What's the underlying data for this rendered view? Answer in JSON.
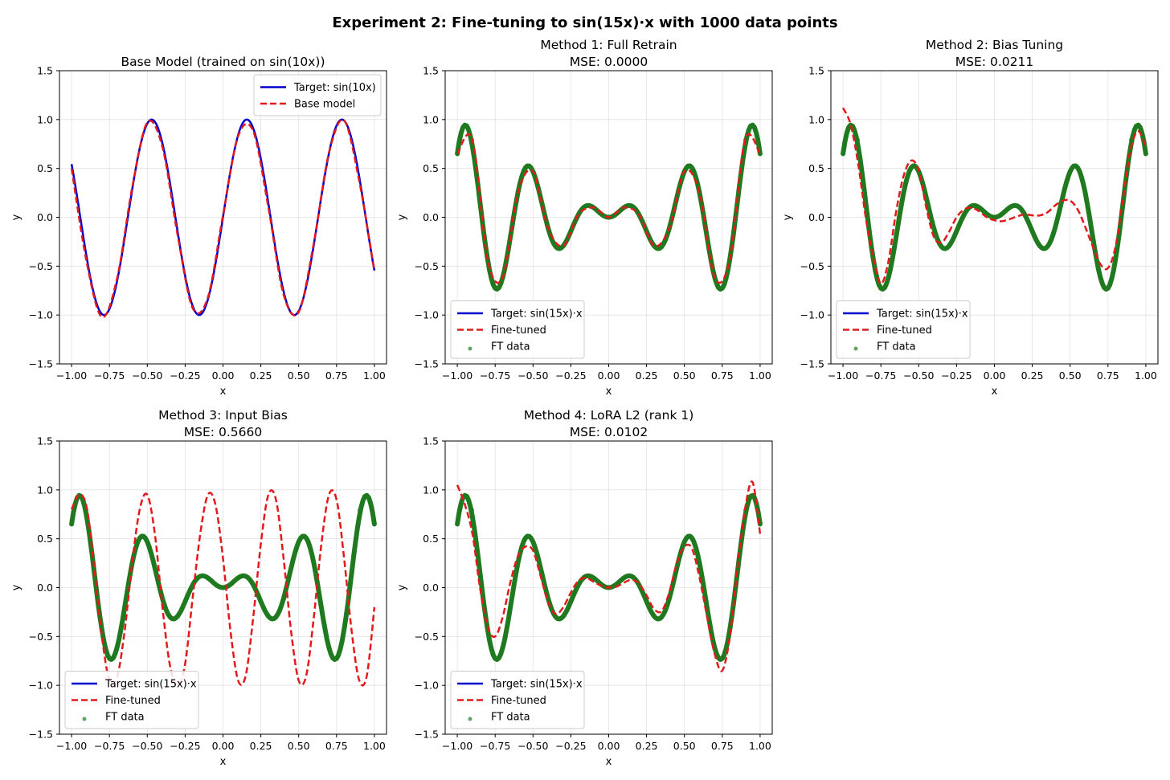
{
  "figure_title": "Experiment 2: Fine-tuning to sin(15x)·x with 1000 data points",
  "colors": {
    "target": "#0000cc",
    "model": "#e31a1c",
    "ft_data": "#1f7a1f"
  },
  "chart_data": [
    {
      "type": "line",
      "title_lines": [
        "Base Model (trained on sin(10x))"
      ],
      "xlabel": "x",
      "ylabel": "y",
      "xlim": [
        -1.08,
        1.08
      ],
      "ylim": [
        -1.5,
        1.5
      ],
      "xticks": [
        "−1.00",
        "−0.75",
        "−0.50",
        "−0.25",
        "0.00",
        "0.25",
        "0.50",
        "0.75",
        "1.00"
      ],
      "yticks": [
        "−1.5",
        "−1.0",
        "−0.5",
        "0.0",
        "0.5",
        "1.0",
        "1.5"
      ],
      "grid": true,
      "legend_position": "top-right",
      "legend": [
        "Target: sin(10x)",
        "Base model"
      ],
      "series": [
        {
          "name": "Target: sin(10x)",
          "style": "target",
          "x": [
            -1,
            -0.9,
            -0.8,
            -0.7,
            -0.6,
            -0.5,
            -0.4,
            -0.3,
            -0.2,
            -0.1,
            0,
            0.1,
            0.2,
            0.3,
            0.4,
            0.5,
            0.6,
            0.7,
            0.8,
            0.9,
            1
          ],
          "y": [
            0.544,
            -0.412,
            -0.989,
            -0.657,
            0.279,
            0.959,
            0.757,
            -0.141,
            -0.909,
            -0.841,
            0,
            0.841,
            0.909,
            0.141,
            -0.757,
            -0.959,
            -0.279,
            0.657,
            0.989,
            0.412,
            -0.544
          ]
        },
        {
          "name": "Base model",
          "style": "model",
          "x": [
            -1,
            -0.9,
            -0.8,
            -0.7,
            -0.6,
            -0.5,
            -0.4,
            -0.3,
            -0.2,
            -0.1,
            0,
            0.1,
            0.2,
            0.3,
            0.4,
            0.5,
            0.6,
            0.7,
            0.8,
            0.9,
            1
          ],
          "y": [
            0.5,
            -0.46,
            -1.02,
            -0.63,
            0.3,
            0.97,
            0.72,
            -0.18,
            -0.93,
            -0.82,
            0.02,
            0.83,
            0.88,
            0.1,
            -0.79,
            -0.97,
            -0.26,
            0.66,
            0.99,
            0.37,
            -0.55
          ]
        }
      ]
    },
    {
      "type": "line",
      "title_lines": [
        "Method 1: Full Retrain",
        "MSE: 0.0000"
      ],
      "xlabel": "x",
      "ylabel": "y",
      "xlim": [
        -1.08,
        1.08
      ],
      "ylim": [
        -1.5,
        1.5
      ],
      "xticks": [
        "−1.00",
        "−0.75",
        "−0.50",
        "−0.25",
        "0.00",
        "0.25",
        "0.50",
        "0.75",
        "1.00"
      ],
      "yticks": [
        "−1.5",
        "−1.0",
        "−0.5",
        "0.0",
        "0.5",
        "1.0",
        "1.5"
      ],
      "grid": true,
      "legend_position": "bottom-left",
      "legend": [
        "Target: sin(15x)·x",
        "Fine-tuned",
        "FT data"
      ],
      "series": [
        {
          "name": "Target: sin(15x)·x",
          "style": "target",
          "x": [
            -1,
            -0.9,
            -0.8,
            -0.7,
            -0.6,
            -0.5,
            -0.4,
            -0.3,
            -0.2,
            -0.1,
            0,
            0.1,
            0.2,
            0.3,
            0.4,
            0.5,
            0.6,
            0.7,
            0.8,
            0.9,
            1
          ],
          "y": [
            0.65,
            0.793,
            -0.429,
            -0.617,
            0.247,
            0.469,
            -0.112,
            -0.293,
            0.028,
            0.1,
            0,
            0.1,
            0.028,
            -0.293,
            -0.112,
            0.469,
            0.247,
            -0.617,
            -0.429,
            0.793,
            0.65
          ]
        },
        {
          "name": "Fine-tuned",
          "style": "model",
          "x": [
            -1,
            -0.9,
            -0.8,
            -0.7,
            -0.6,
            -0.5,
            -0.4,
            -0.3,
            -0.2,
            -0.1,
            0,
            0.1,
            0.2,
            0.3,
            0.4,
            0.5,
            0.6,
            0.7,
            0.8,
            0.9,
            1
          ],
          "y": [
            0.65,
            0.793,
            -0.429,
            -0.617,
            0.247,
            0.469,
            -0.112,
            -0.293,
            0.028,
            0.1,
            0,
            0.1,
            0.028,
            -0.293,
            -0.112,
            0.469,
            0.247,
            -0.617,
            -0.429,
            0.793,
            0.65
          ]
        },
        {
          "name": "FT data",
          "style": "data",
          "x": [
            -1,
            -0.9,
            -0.8,
            -0.7,
            -0.6,
            -0.5,
            -0.4,
            -0.3,
            -0.2,
            -0.1,
            0,
            0.1,
            0.2,
            0.3,
            0.4,
            0.5,
            0.6,
            0.7,
            0.8,
            0.9,
            1
          ],
          "y": [
            0.65,
            0.793,
            -0.429,
            -0.617,
            0.247,
            0.469,
            -0.112,
            -0.293,
            0.028,
            0.1,
            0,
            0.1,
            0.028,
            -0.293,
            -0.112,
            0.469,
            0.247,
            -0.617,
            -0.429,
            0.793,
            0.65
          ]
        }
      ]
    },
    {
      "type": "line",
      "title_lines": [
        "Method 2: Bias Tuning",
        "MSE: 0.0211"
      ],
      "xlabel": "x",
      "ylabel": "y",
      "xlim": [
        -1.08,
        1.08
      ],
      "ylim": [
        -1.5,
        1.5
      ],
      "xticks": [
        "−1.00",
        "−0.75",
        "−0.50",
        "−0.25",
        "0.00",
        "0.25",
        "0.50",
        "0.75",
        "1.00"
      ],
      "yticks": [
        "−1.5",
        "−1.0",
        "−0.5",
        "0.0",
        "0.5",
        "1.0",
        "1.5"
      ],
      "grid": true,
      "legend_position": "bottom-left",
      "legend": [
        "Target: sin(15x)·x",
        "Fine-tuned",
        "FT data"
      ],
      "series": [
        {
          "name": "Target: sin(15x)·x",
          "style": "target",
          "x": [
            -1,
            -0.9,
            -0.8,
            -0.7,
            -0.6,
            -0.5,
            -0.4,
            -0.3,
            -0.2,
            -0.1,
            0,
            0.1,
            0.2,
            0.3,
            0.4,
            0.5,
            0.6,
            0.7,
            0.8,
            0.9,
            1
          ],
          "y": [
            0.65,
            0.793,
            -0.429,
            -0.617,
            0.247,
            0.469,
            -0.112,
            -0.293,
            0.028,
            0.1,
            0,
            0.1,
            0.028,
            -0.293,
            -0.112,
            0.469,
            0.247,
            -0.617,
            -0.429,
            0.793,
            0.65
          ]
        },
        {
          "name": "Fine-tuned",
          "style": "model",
          "x": [
            -1,
            -0.95,
            -0.9,
            -0.85,
            -0.8,
            -0.75,
            -0.7,
            -0.65,
            -0.6,
            -0.55,
            -0.5,
            -0.45,
            -0.4,
            -0.35,
            -0.3,
            -0.25,
            -0.2,
            -0.15,
            -0.1,
            -0.05,
            0,
            0.05,
            0.1,
            0.15,
            0.2,
            0.25,
            0.3,
            0.35,
            0.4,
            0.45,
            0.5,
            0.55,
            0.6,
            0.65,
            0.7,
            0.75,
            0.8,
            0.85,
            0.9,
            0.95,
            1
          ],
          "y": [
            1.12,
            0.95,
            0.55,
            0.0,
            -0.42,
            -0.68,
            -0.45,
            0.05,
            0.42,
            0.58,
            0.48,
            0.1,
            -0.2,
            -0.26,
            -0.15,
            0.0,
            0.08,
            0.1,
            0.06,
            0.0,
            -0.03,
            -0.04,
            -0.02,
            0.01,
            0.03,
            0.02,
            0.02,
            0.05,
            0.12,
            0.17,
            0.17,
            0.08,
            -0.1,
            -0.3,
            -0.48,
            -0.52,
            -0.3,
            0.2,
            0.7,
            0.88,
            0.72
          ]
        },
        {
          "name": "FT data",
          "style": "data",
          "x": [
            -1,
            -0.9,
            -0.8,
            -0.7,
            -0.6,
            -0.5,
            -0.4,
            -0.3,
            -0.2,
            -0.1,
            0,
            0.1,
            0.2,
            0.3,
            0.4,
            0.5,
            0.6,
            0.7,
            0.8,
            0.9,
            1
          ],
          "y": [
            0.65,
            0.793,
            -0.429,
            -0.617,
            0.247,
            0.469,
            -0.112,
            -0.293,
            0.028,
            0.1,
            0,
            0.1,
            0.028,
            -0.293,
            -0.112,
            0.469,
            0.247,
            -0.617,
            -0.429,
            0.793,
            0.65
          ]
        }
      ]
    },
    {
      "type": "line",
      "title_lines": [
        "Method 3: Input Bias",
        "MSE: 0.5660"
      ],
      "xlabel": "x",
      "ylabel": "y",
      "xlim": [
        -1.08,
        1.08
      ],
      "ylim": [
        -1.5,
        1.5
      ],
      "xticks": [
        "−1.00",
        "−0.75",
        "−0.50",
        "−0.25",
        "0.00",
        "0.25",
        "0.50",
        "0.75",
        "1.00"
      ],
      "yticks": [
        "−1.5",
        "−1.0",
        "−0.5",
        "0.0",
        "0.5",
        "1.0",
        "1.5"
      ],
      "grid": true,
      "legend_position": "bottom-left",
      "legend": [
        "Target: sin(15x)·x",
        "Fine-tuned",
        "FT data"
      ],
      "series": [
        {
          "name": "Target: sin(15x)·x",
          "style": "target",
          "x": [
            -1,
            -0.9,
            -0.8,
            -0.7,
            -0.6,
            -0.5,
            -0.4,
            -0.3,
            -0.2,
            -0.1,
            0,
            0.1,
            0.2,
            0.3,
            0.4,
            0.5,
            0.6,
            0.7,
            0.8,
            0.9,
            1
          ],
          "y": [
            0.65,
            0.793,
            -0.429,
            -0.617,
            0.247,
            0.469,
            -0.112,
            -0.293,
            0.028,
            0.1,
            0,
            0.1,
            0.028,
            -0.293,
            -0.112,
            0.469,
            0.247,
            -0.617,
            -0.429,
            0.793,
            0.65
          ]
        },
        {
          "name": "Fine-tuned",
          "style": "model",
          "x": [
            -1,
            -0.95,
            -0.9,
            -0.85,
            -0.8,
            -0.75,
            -0.7,
            -0.65,
            -0.6,
            -0.55,
            -0.5,
            -0.45,
            -0.4,
            -0.35,
            -0.3,
            -0.25,
            -0.2,
            -0.15,
            -0.1,
            -0.05,
            0,
            0.05,
            0.1,
            0.15,
            0.2,
            0.25,
            0.3,
            0.35,
            0.4,
            0.45,
            0.5,
            0.55,
            0.6,
            0.65,
            0.7,
            0.75,
            0.8,
            0.85,
            0.9,
            0.95,
            1
          ],
          "y": [
            0.8,
            0.95,
            0.82,
            0.2,
            -0.5,
            -0.95,
            -0.92,
            -0.45,
            0.25,
            0.8,
            0.95,
            0.55,
            -0.2,
            -0.8,
            -1.0,
            -0.78,
            -0.1,
            0.55,
            0.95,
            0.85,
            0.3,
            -0.45,
            -0.95,
            -0.9,
            -0.3,
            0.45,
            0.95,
            0.9,
            0.3,
            -0.45,
            -0.95,
            -0.9,
            -0.3,
            0.45,
            0.95,
            0.9,
            0.3,
            -0.45,
            -0.95,
            -0.9,
            -0.2
          ]
        },
        {
          "name": "FT data",
          "style": "data",
          "x": [
            -1,
            -0.9,
            -0.8,
            -0.7,
            -0.6,
            -0.5,
            -0.4,
            -0.3,
            -0.2,
            -0.1,
            0,
            0.1,
            0.2,
            0.3,
            0.4,
            0.5,
            0.6,
            0.7,
            0.8,
            0.9,
            1
          ],
          "y": [
            0.65,
            0.793,
            -0.429,
            -0.617,
            0.247,
            0.469,
            -0.112,
            -0.293,
            0.028,
            0.1,
            0,
            0.1,
            0.028,
            -0.293,
            -0.112,
            0.469,
            0.247,
            -0.617,
            -0.429,
            0.793,
            0.65
          ]
        }
      ]
    },
    {
      "type": "line",
      "title_lines": [
        "Method 4: LoRA L2 (rank 1)",
        "MSE: 0.0102"
      ],
      "xlabel": "x",
      "ylabel": "y",
      "xlim": [
        -1.08,
        1.08
      ],
      "ylim": [
        -1.5,
        1.5
      ],
      "xticks": [
        "−1.00",
        "−0.75",
        "−0.50",
        "−0.25",
        "0.00",
        "0.25",
        "0.50",
        "0.75",
        "1.00"
      ],
      "yticks": [
        "−1.5",
        "−1.0",
        "−0.5",
        "0.0",
        "0.5",
        "1.0",
        "1.5"
      ],
      "grid": true,
      "legend_position": "bottom-left",
      "legend": [
        "Target: sin(15x)·x",
        "Fine-tuned",
        "FT data"
      ],
      "series": [
        {
          "name": "Target: sin(15x)·x",
          "style": "target",
          "x": [
            -1,
            -0.9,
            -0.8,
            -0.7,
            -0.6,
            -0.5,
            -0.4,
            -0.3,
            -0.2,
            -0.1,
            0,
            0.1,
            0.2,
            0.3,
            0.4,
            0.5,
            0.6,
            0.7,
            0.8,
            0.9,
            1
          ],
          "y": [
            0.65,
            0.793,
            -0.429,
            -0.617,
            0.247,
            0.469,
            -0.112,
            -0.293,
            0.028,
            0.1,
            0,
            0.1,
            0.028,
            -0.293,
            -0.112,
            0.469,
            0.247,
            -0.617,
            -0.429,
            0.793,
            0.65
          ]
        },
        {
          "name": "Fine-tuned",
          "style": "model",
          "x": [
            -1,
            -0.95,
            -0.9,
            -0.85,
            -0.8,
            -0.75,
            -0.7,
            -0.65,
            -0.6,
            -0.55,
            -0.5,
            -0.45,
            -0.4,
            -0.35,
            -0.3,
            -0.25,
            -0.2,
            -0.15,
            -0.1,
            -0.05,
            0,
            0.05,
            0.1,
            0.15,
            0.2,
            0.25,
            0.3,
            0.35,
            0.4,
            0.45,
            0.5,
            0.55,
            0.6,
            0.65,
            0.7,
            0.75,
            0.8,
            0.85,
            0.9,
            0.95,
            1
          ],
          "y": [
            1.05,
            0.85,
            0.55,
            0.0,
            -0.4,
            -0.5,
            -0.3,
            0.05,
            0.32,
            0.42,
            0.38,
            0.12,
            -0.15,
            -0.27,
            -0.2,
            -0.05,
            0.07,
            0.1,
            0.06,
            0.02,
            0.0,
            0.01,
            0.05,
            0.08,
            0.04,
            -0.08,
            -0.22,
            -0.24,
            -0.05,
            0.25,
            0.42,
            0.4,
            0.1,
            -0.3,
            -0.68,
            -0.85,
            -0.5,
            0.2,
            0.8,
            1.08,
            0.55
          ]
        },
        {
          "name": "FT data",
          "style": "data",
          "x": [
            -1,
            -0.9,
            -0.8,
            -0.7,
            -0.6,
            -0.5,
            -0.4,
            -0.3,
            -0.2,
            -0.1,
            0,
            0.1,
            0.2,
            0.3,
            0.4,
            0.5,
            0.6,
            0.7,
            0.8,
            0.9,
            1
          ],
          "y": [
            0.65,
            0.793,
            -0.429,
            -0.617,
            0.247,
            0.469,
            -0.112,
            -0.293,
            0.028,
            0.1,
            0,
            0.1,
            0.028,
            -0.293,
            -0.112,
            0.469,
            0.247,
            -0.617,
            -0.429,
            0.793,
            0.65
          ]
        }
      ]
    }
  ]
}
